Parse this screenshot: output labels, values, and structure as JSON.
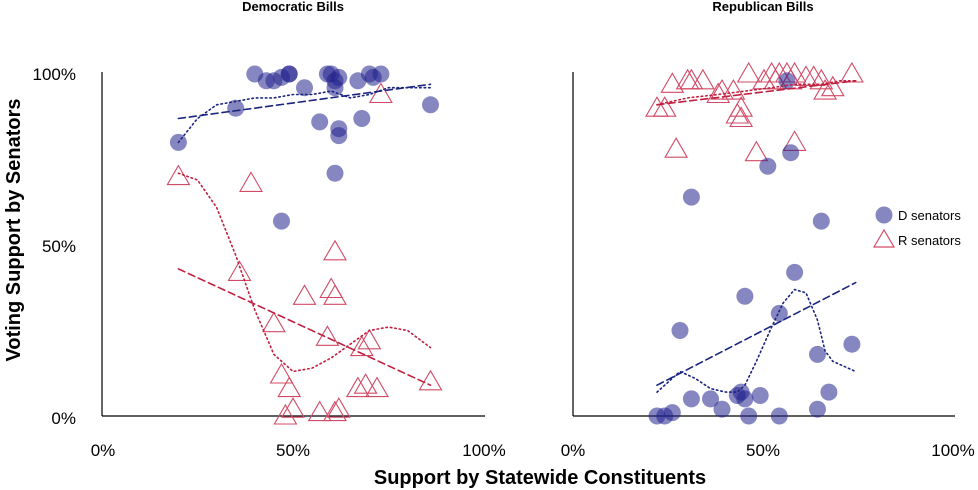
{
  "chart_data": {
    "type": "scatter",
    "xlabel": "Support by Statewide Constituents",
    "ylabel": "Voting Support by Senators",
    "xlim": [
      0,
      100
    ],
    "ylim": [
      0,
      100
    ],
    "x_ticks": [
      "0%",
      "50%",
      "100%"
    ],
    "y_ticks": [
      "0%",
      "50%",
      "100%"
    ],
    "colors": {
      "d": "#23238e",
      "r": "#d14b66",
      "d_line": "#1a2580",
      "r_line": "#c02040"
    },
    "legend": {
      "placement": "right of Republican panel",
      "items": [
        "D senators",
        "R senators"
      ]
    },
    "panels": [
      {
        "title": "Democratic Bills",
        "series": [
          {
            "name": "D senators",
            "marker": "circle",
            "points": [
              [
                20,
                80
              ],
              [
                35,
                90
              ],
              [
                40,
                100
              ],
              [
                43,
                98
              ],
              [
                45,
                98
              ],
              [
                47,
                99
              ],
              [
                49,
                100
              ],
              [
                49,
                100
              ],
              [
                53,
                96
              ],
              [
                57,
                86
              ],
              [
                59,
                100
              ],
              [
                60,
                100
              ],
              [
                61,
                98
              ],
              [
                61,
                96
              ],
              [
                62,
                99
              ],
              [
                62,
                84
              ],
              [
                62,
                82
              ],
              [
                61,
                71
              ],
              [
                67,
                98
              ],
              [
                68,
                87
              ],
              [
                70,
                100
              ],
              [
                71,
                99
              ],
              [
                73,
                100
              ],
              [
                86,
                91
              ],
              [
                47,
                57
              ]
            ]
          },
          {
            "name": "R senators",
            "marker": "triangle",
            "points": [
              [
                20,
                70
              ],
              [
                39,
                68
              ],
              [
                36,
                42
              ],
              [
                45,
                27
              ],
              [
                47,
                12
              ],
              [
                48,
                0
              ],
              [
                49,
                8
              ],
              [
                50,
                2
              ],
              [
                53,
                35
              ],
              [
                57,
                1
              ],
              [
                59,
                23
              ],
              [
                60,
                37
              ],
              [
                61,
                48
              ],
              [
                61,
                35
              ],
              [
                61,
                1
              ],
              [
                62,
                2
              ],
              [
                67,
                8
              ],
              [
                68,
                20
              ],
              [
                69,
                9
              ],
              [
                70,
                22
              ],
              [
                72,
                8
              ],
              [
                73,
                94
              ],
              [
                86,
                10
              ]
            ]
          }
        ],
        "trend_lines": [
          {
            "series": "D senators",
            "style": "dashed",
            "points": [
              [
                20,
                87
              ],
              [
                86,
                97
              ]
            ]
          },
          {
            "series": "R senators",
            "style": "dashed",
            "points": [
              [
                20,
                43
              ],
              [
                86,
                9
              ]
            ]
          },
          {
            "series": "D senators",
            "style": "dotted",
            "points": [
              [
                20,
                80
              ],
              [
                25,
                87
              ],
              [
                30,
                91
              ],
              [
                35,
                92
              ],
              [
                40,
                93
              ],
              [
                45,
                93
              ],
              [
                50,
                94
              ],
              [
                55,
                94
              ],
              [
                60,
                95
              ],
              [
                65,
                93
              ],
              [
                70,
                94
              ],
              [
                75,
                96
              ],
              [
                80,
                96
              ],
              [
                86,
                96
              ]
            ]
          },
          {
            "series": "R senators",
            "style": "dotted",
            "points": [
              [
                20,
                71
              ],
              [
                25,
                69
              ],
              [
                30,
                61
              ],
              [
                35,
                47
              ],
              [
                40,
                31
              ],
              [
                45,
                18
              ],
              [
                50,
                13
              ],
              [
                55,
                14
              ],
              [
                60,
                17
              ],
              [
                65,
                21
              ],
              [
                70,
                25
              ],
              [
                75,
                26
              ],
              [
                80,
                25
              ],
              [
                86,
                20
              ]
            ]
          }
        ]
      },
      {
        "title": "Republican Bills",
        "series": [
          {
            "name": "D senators",
            "marker": "circle",
            "points": [
              [
                22,
                0
              ],
              [
                24,
                0
              ],
              [
                26,
                1
              ],
              [
                28,
                25
              ],
              [
                31,
                64
              ],
              [
                31,
                5
              ],
              [
                36,
                5
              ],
              [
                39,
                2
              ],
              [
                43,
                6
              ],
              [
                44,
                7
              ],
              [
                45,
                35
              ],
              [
                45,
                5
              ],
              [
                46,
                0
              ],
              [
                49,
                6
              ],
              [
                51,
                73
              ],
              [
                54,
                30
              ],
              [
                54,
                0
              ],
              [
                56,
                98
              ],
              [
                57,
                77
              ],
              [
                58,
                42
              ],
              [
                64,
                2
              ],
              [
                64,
                18
              ],
              [
                65,
                57
              ],
              [
                67,
                7
              ],
              [
                73,
                21
              ]
            ]
          },
          {
            "name": "R senators",
            "marker": "triangle",
            "points": [
              [
                22,
                90
              ],
              [
                24,
                90
              ],
              [
                26,
                97
              ],
              [
                27,
                78
              ],
              [
                30,
                98
              ],
              [
                31,
                98
              ],
              [
                34,
                98
              ],
              [
                38,
                94
              ],
              [
                39,
                95
              ],
              [
                42,
                95
              ],
              [
                43,
                88
              ],
              [
                44,
                90
              ],
              [
                44,
                87
              ],
              [
                46,
                100
              ],
              [
                48,
                77
              ],
              [
                50,
                98
              ],
              [
                52,
                100
              ],
              [
                53,
                98
              ],
              [
                54,
                100
              ],
              [
                56,
                100
              ],
              [
                57,
                98
              ],
              [
                58,
                80
              ],
              [
                58,
                100
              ],
              [
                61,
                99
              ],
              [
                63,
                99
              ],
              [
                65,
                98
              ],
              [
                66,
                95
              ],
              [
                68,
                96
              ],
              [
                73,
                100
              ]
            ]
          }
        ],
        "trend_lines": [
          {
            "series": "R senators",
            "style": "dashed",
            "points": [
              [
                22,
                91
              ],
              [
                74,
                98
              ]
            ]
          },
          {
            "series": "D senators",
            "style": "dashed",
            "points": [
              [
                22,
                9
              ],
              [
                74,
                39
              ]
            ]
          },
          {
            "series": "R senators",
            "style": "dotted",
            "points": [
              [
                22,
                91
              ],
              [
                30,
                93
              ],
              [
                38,
                94
              ],
              [
                45,
                95
              ],
              [
                52,
                96
              ],
              [
                58,
                97
              ],
              [
                65,
                97
              ],
              [
                70,
                98
              ],
              [
                74,
                98
              ]
            ]
          },
          {
            "series": "D senators",
            "style": "dotted",
            "points": [
              [
                22,
                7
              ],
              [
                25,
                10
              ],
              [
                28,
                13
              ],
              [
                32,
                11
              ],
              [
                36,
                8
              ],
              [
                40,
                7
              ],
              [
                43,
                7
              ],
              [
                45,
                9
              ],
              [
                48,
                16
              ],
              [
                52,
                26
              ],
              [
                55,
                33
              ],
              [
                58,
                37
              ],
              [
                61,
                36
              ],
              [
                64,
                28
              ],
              [
                66,
                19
              ],
              [
                68,
                16
              ],
              [
                70,
                15
              ],
              [
                72,
                14
              ],
              [
                74,
                13
              ]
            ]
          }
        ]
      }
    ]
  }
}
